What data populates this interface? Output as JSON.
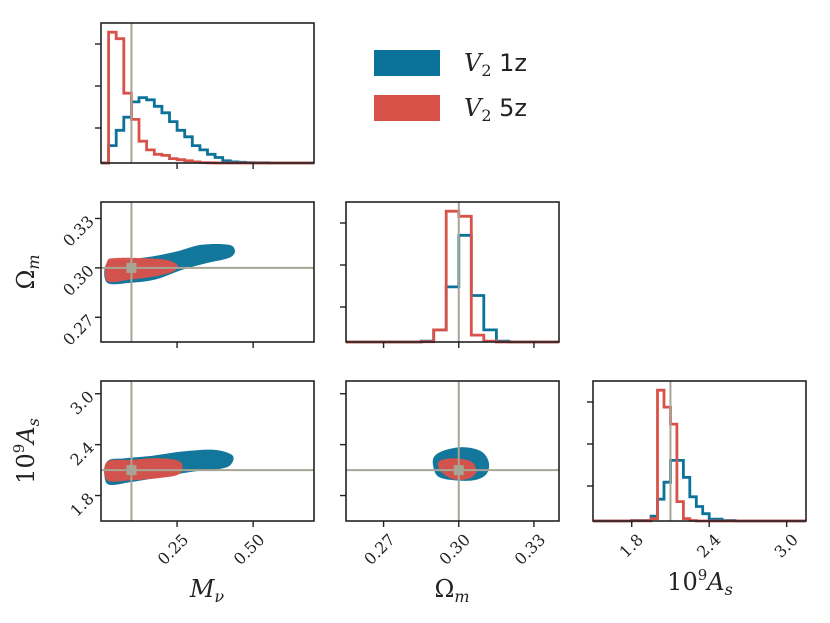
{
  "chart_data": {
    "type": "corner",
    "parameters": [
      {
        "key": "mnu",
        "label": "Mν",
        "tex": "M_\\nu",
        "range": [
          0.0,
          0.7
        ],
        "ticks": [
          0.25,
          0.5
        ],
        "tick_labels": [
          "0.25",
          "0.50"
        ],
        "truth": 0.1
      },
      {
        "key": "om",
        "label": "Ωm",
        "tex": "\\Omega_m",
        "range": [
          0.255,
          0.34
        ],
        "ticks": [
          0.27,
          0.3,
          0.33
        ],
        "tick_labels": [
          "0.27",
          "0.30",
          "0.33"
        ],
        "truth": 0.3
      },
      {
        "key": "as",
        "label": "10⁹As",
        "tex": "10^9 A_s",
        "range": [
          1.5,
          3.15
        ],
        "ticks": [
          1.8,
          2.4,
          3.0
        ],
        "tick_labels": [
          "1.8",
          "2.4",
          "3.0"
        ],
        "truth": 2.1
      }
    ],
    "series": [
      {
        "name": "V2 1z",
        "legend_var": "V",
        "legend_sub": "2",
        "legend_suffix": " 1z",
        "color": "#0b7399",
        "hist": {
          "mnu": {
            "edges": [
              0.0,
              0.025,
              0.05,
              0.075,
              0.1,
              0.125,
              0.15,
              0.175,
              0.2,
              0.225,
              0.25,
              0.275,
              0.3,
              0.325,
              0.35,
              0.375,
              0.4,
              0.425,
              0.45,
              0.475,
              0.5,
              0.525,
              0.55,
              0.575,
              0.6,
              0.625,
              0.65,
              0.675,
              0.7
            ],
            "counts": [
              0,
              0.08,
              0.15,
              0.21,
              0.28,
              0.3,
              0.29,
              0.26,
              0.23,
              0.19,
              0.15,
              0.12,
              0.08,
              0.06,
              0.04,
              0.025,
              0.01,
              0.005,
              0.003,
              0.002,
              0.001,
              0.001,
              0,
              0,
              0,
              0,
              0,
              0
            ]
          },
          "om": {
            "edges": [
              0.255,
              0.2625,
              0.27,
              0.2775,
              0.285,
              0.29,
              0.295,
              0.3,
              0.305,
              0.31,
              0.315,
              0.32,
              0.325,
              0.33,
              0.3375,
              0.34
            ],
            "counts": [
              0,
              0,
              0,
              0,
              0.005,
              0.07,
              0.32,
              0.62,
              0.27,
              0.07,
              0.005,
              0,
              0,
              0,
              0
            ]
          },
          "as": {
            "edges": [
              1.5,
              1.65,
              1.8,
              1.95,
              2.0,
              2.05,
              2.1,
              2.15,
              2.2,
              2.25,
              2.3,
              2.35,
              2.4,
              2.5,
              2.6,
              2.8,
              3.0,
              3.15
            ],
            "counts": [
              0,
              0,
              0.002,
              0.02,
              0.09,
              0.16,
              0.25,
              0.25,
              0.18,
              0.1,
              0.06,
              0.03,
              0.008,
              0.002,
              0,
              0,
              0
            ]
          }
        },
        "contours": {
          "mnu_om": [
            [
              0.02,
              0.291
            ],
            [
              0.1,
              0.291
            ],
            [
              0.18,
              0.293
            ],
            [
              0.27,
              0.299
            ],
            [
              0.35,
              0.303
            ],
            [
              0.42,
              0.306
            ],
            [
              0.44,
              0.31
            ],
            [
              0.42,
              0.314
            ],
            [
              0.33,
              0.314
            ],
            [
              0.25,
              0.31
            ],
            [
              0.17,
              0.307
            ],
            [
              0.09,
              0.305
            ],
            [
              0.02,
              0.303
            ]
          ],
          "mnu_as": [
            [
              0.02,
              1.94
            ],
            [
              0.1,
              1.96
            ],
            [
              0.2,
              2.02
            ],
            [
              0.3,
              2.08
            ],
            [
              0.4,
              2.12
            ],
            [
              0.43,
              2.18
            ],
            [
              0.43,
              2.28
            ],
            [
              0.37,
              2.34
            ],
            [
              0.27,
              2.32
            ],
            [
              0.17,
              2.27
            ],
            [
              0.08,
              2.24
            ],
            [
              0.02,
              2.2
            ]
          ],
          "om_as": [
            [
              0.292,
              2.02
            ],
            [
              0.298,
              1.98
            ],
            [
              0.306,
              1.98
            ],
            [
              0.311,
              2.05
            ],
            [
              0.312,
              2.19
            ],
            [
              0.309,
              2.32
            ],
            [
              0.302,
              2.37
            ],
            [
              0.294,
              2.33
            ],
            [
              0.29,
              2.25
            ],
            [
              0.29,
              2.12
            ]
          ]
        }
      },
      {
        "name": "V2 5z",
        "legend_var": "V",
        "legend_sub": "2",
        "legend_suffix": " 5z",
        "color": "#d9524a",
        "hist": {
          "mnu": {
            "edges": [
              0.0,
              0.025,
              0.05,
              0.075,
              0.1,
              0.125,
              0.15,
              0.175,
              0.2,
              0.225,
              0.25,
              0.275,
              0.3,
              0.325,
              0.35,
              0.375,
              0.4,
              0.425,
              0.45,
              0.475,
              0.5,
              0.525,
              0.55,
              0.575,
              0.6,
              0.625,
              0.65,
              0.675,
              0.7
            ],
            "counts": [
              0,
              0.6,
              0.57,
              0.32,
              0.2,
              0.1,
              0.06,
              0.04,
              0.035,
              0.02,
              0.015,
              0.01,
              0.005,
              0.002,
              0.001,
              0,
              0,
              0,
              0,
              0,
              0,
              0,
              0,
              0,
              0,
              0,
              0,
              0
            ]
          },
          "om": {
            "edges": [
              0.255,
              0.2625,
              0.27,
              0.2775,
              0.285,
              0.29,
              0.295,
              0.3,
              0.305,
              0.31,
              0.315,
              0.32,
              0.325,
              0.33,
              0.3375,
              0.34
            ],
            "counts": [
              0,
              0,
              0,
              0,
              0.002,
              0.07,
              0.76,
              0.73,
              0.04,
              0.005,
              0,
              0,
              0,
              0,
              0
            ]
          },
          "as": {
            "edges": [
              1.5,
              1.65,
              1.8,
              1.95,
              2.0,
              2.05,
              2.1,
              2.15,
              2.2,
              2.25,
              2.3,
              2.35,
              2.4,
              2.5,
              2.6,
              2.8,
              3.0,
              3.15
            ],
            "counts": [
              0,
              0,
              0.001,
              0.01,
              0.54,
              0.47,
              0.4,
              0.08,
              0.01,
              0.002,
              0,
              0,
              0,
              0,
              0,
              0,
              0
            ]
          }
        },
        "contours": {
          "mnu_om": [
            [
              0.02,
              0.292
            ],
            [
              0.1,
              0.293
            ],
            [
              0.18,
              0.295
            ],
            [
              0.24,
              0.298
            ],
            [
              0.25,
              0.302
            ],
            [
              0.21,
              0.305
            ],
            [
              0.13,
              0.306
            ],
            [
              0.05,
              0.306
            ],
            [
              0.02,
              0.304
            ]
          ],
          "mnu_as": [
            [
              0.02,
              1.98
            ],
            [
              0.1,
              1.98
            ],
            [
              0.2,
              2.01
            ],
            [
              0.26,
              2.06
            ],
            [
              0.26,
              2.2
            ],
            [
              0.19,
              2.24
            ],
            [
              0.1,
              2.22
            ],
            [
              0.02,
              2.2
            ]
          ],
          "om_as": [
            [
              0.293,
              2.08
            ],
            [
              0.298,
              1.99
            ],
            [
              0.304,
              2.0
            ],
            [
              0.307,
              2.08
            ],
            [
              0.305,
              2.2
            ],
            [
              0.298,
              2.24
            ],
            [
              0.292,
              2.2
            ]
          ]
        }
      }
    ],
    "truth_color": "#a8a594",
    "grid": false,
    "legend_position": "top-right"
  }
}
